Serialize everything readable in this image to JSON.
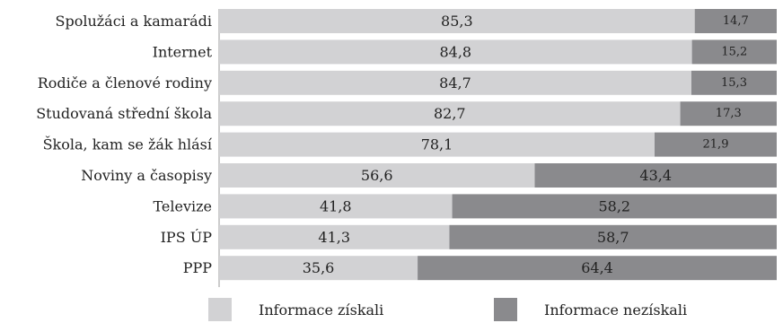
{
  "chart_data": {
    "type": "bar",
    "stacked": true,
    "orientation": "horizontal",
    "title": "",
    "xlabel": "",
    "ylabel": "",
    "xlim": [
      0,
      100
    ],
    "grid": false,
    "legend_position": "bottom",
    "categories": [
      "Spolužáci a kamarádi",
      "Internet",
      "Rodiče a členové rodiny",
      "Studovaná střední škola",
      "Škola, kam se žák hlásí",
      "Noviny a časopisy",
      "Televize",
      "IPS ÚP",
      "PPP"
    ],
    "series": [
      {
        "name": "Informace získali",
        "color": "#d2d2d4",
        "values": [
          85.3,
          84.8,
          84.7,
          82.7,
          78.1,
          56.6,
          41.8,
          41.3,
          35.6
        ],
        "labels": [
          "85,3",
          "84,8",
          "84,7",
          "82,7",
          "78,1",
          "56,6",
          "41,8",
          "41,3",
          "35,6"
        ]
      },
      {
        "name": "Informace nezískali",
        "color": "#8a8a8d",
        "values": [
          14.7,
          15.2,
          15.3,
          17.3,
          21.9,
          43.4,
          58.2,
          58.7,
          64.4
        ],
        "labels": [
          "14,7",
          "15,2",
          "15,3",
          "17,3",
          "21,9",
          "43,4",
          "58,2",
          "58,7",
          "64,4"
        ]
      }
    ]
  }
}
